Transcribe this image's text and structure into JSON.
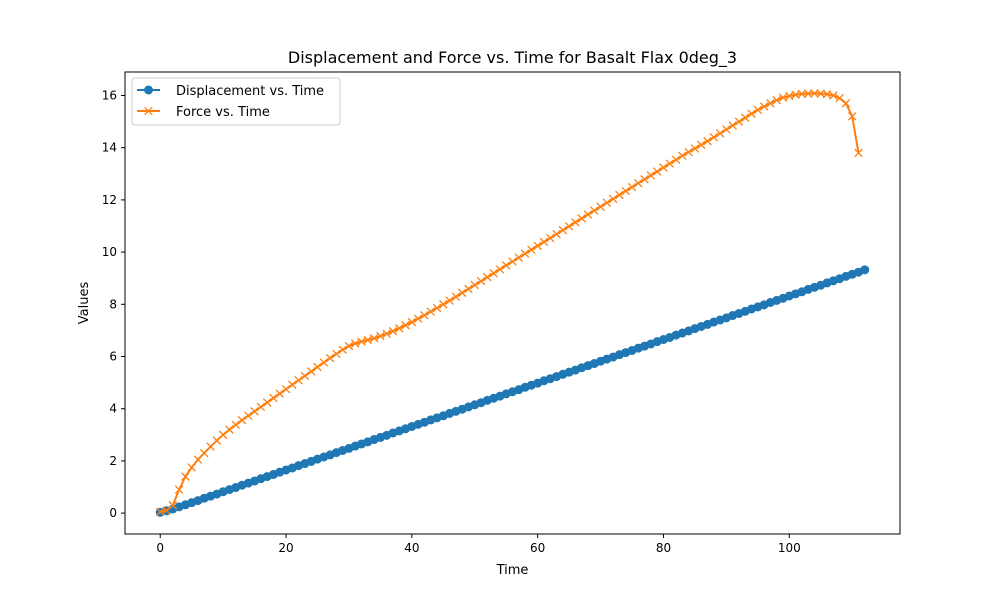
{
  "chart_data": {
    "type": "line",
    "title": "Displacement and Force vs. Time for Basalt Flax 0deg_3",
    "xlabel": "Time",
    "ylabel": "Values",
    "xlim": [
      -5.6,
      117.6
    ],
    "ylim": [
      -0.8,
      16.9
    ],
    "x_ticks": [
      0,
      20,
      40,
      60,
      80,
      100
    ],
    "y_ticks": [
      0,
      2,
      4,
      6,
      8,
      10,
      12,
      14,
      16
    ],
    "grid": false,
    "legend_placement": "top-left",
    "series": [
      {
        "name": "Displacement vs. Time",
        "color": "#1f77b4",
        "marker": "circle",
        "x_start": 0,
        "x_step": 1,
        "values": [
          0.03,
          0.09,
          0.16,
          0.24,
          0.32,
          0.4,
          0.48,
          0.57,
          0.65,
          0.73,
          0.82,
          0.9,
          0.98,
          1.07,
          1.15,
          1.23,
          1.32,
          1.4,
          1.48,
          1.57,
          1.65,
          1.73,
          1.82,
          1.9,
          1.98,
          2.07,
          2.15,
          2.23,
          2.32,
          2.4,
          2.48,
          2.57,
          2.65,
          2.73,
          2.82,
          2.9,
          2.98,
          3.07,
          3.15,
          3.23,
          3.32,
          3.4,
          3.48,
          3.57,
          3.65,
          3.73,
          3.82,
          3.9,
          3.98,
          4.07,
          4.15,
          4.23,
          4.32,
          4.4,
          4.48,
          4.57,
          4.65,
          4.73,
          4.82,
          4.9,
          4.98,
          5.07,
          5.15,
          5.23,
          5.32,
          5.4,
          5.48,
          5.57,
          5.65,
          5.73,
          5.82,
          5.9,
          5.98,
          6.07,
          6.15,
          6.23,
          6.32,
          6.4,
          6.48,
          6.57,
          6.65,
          6.73,
          6.82,
          6.9,
          6.98,
          7.07,
          7.15,
          7.23,
          7.32,
          7.4,
          7.48,
          7.57,
          7.65,
          7.73,
          7.82,
          7.9,
          7.98,
          8.07,
          8.15,
          8.23,
          8.32,
          8.4,
          8.48,
          8.57,
          8.65,
          8.73,
          8.82,
          8.9,
          8.98,
          9.07,
          9.15,
          9.23,
          9.32
        ]
      },
      {
        "name": "Force vs. Time",
        "color": "#ff7f0e",
        "marker": "x",
        "x_start": 0,
        "x_step": 1,
        "values": [
          0.05,
          0.1,
          0.3,
          0.9,
          1.4,
          1.75,
          2.05,
          2.3,
          2.55,
          2.78,
          3.0,
          3.2,
          3.38,
          3.56,
          3.73,
          3.9,
          4.07,
          4.24,
          4.41,
          4.58,
          4.75,
          4.92,
          5.09,
          5.26,
          5.43,
          5.6,
          5.77,
          5.94,
          6.1,
          6.26,
          6.4,
          6.5,
          6.57,
          6.63,
          6.7,
          6.78,
          6.87,
          6.97,
          7.08,
          7.2,
          7.32,
          7.45,
          7.58,
          7.72,
          7.86,
          8.0,
          8.14,
          8.29,
          8.44,
          8.59,
          8.74,
          8.89,
          9.04,
          9.19,
          9.34,
          9.49,
          9.64,
          9.79,
          9.94,
          10.09,
          10.24,
          10.39,
          10.54,
          10.69,
          10.84,
          10.99,
          11.14,
          11.29,
          11.44,
          11.59,
          11.74,
          11.89,
          12.04,
          12.19,
          12.34,
          12.49,
          12.64,
          12.79,
          12.94,
          13.09,
          13.24,
          13.39,
          13.54,
          13.69,
          13.83,
          13.97,
          14.11,
          14.25,
          14.4,
          14.55,
          14.7,
          14.85,
          15.0,
          15.15,
          15.3,
          15.45,
          15.58,
          15.7,
          15.82,
          15.92,
          15.98,
          16.03,
          16.06,
          16.07,
          16.08,
          16.07,
          16.05,
          16.0,
          15.9,
          15.7,
          15.2,
          13.8
        ]
      }
    ]
  }
}
